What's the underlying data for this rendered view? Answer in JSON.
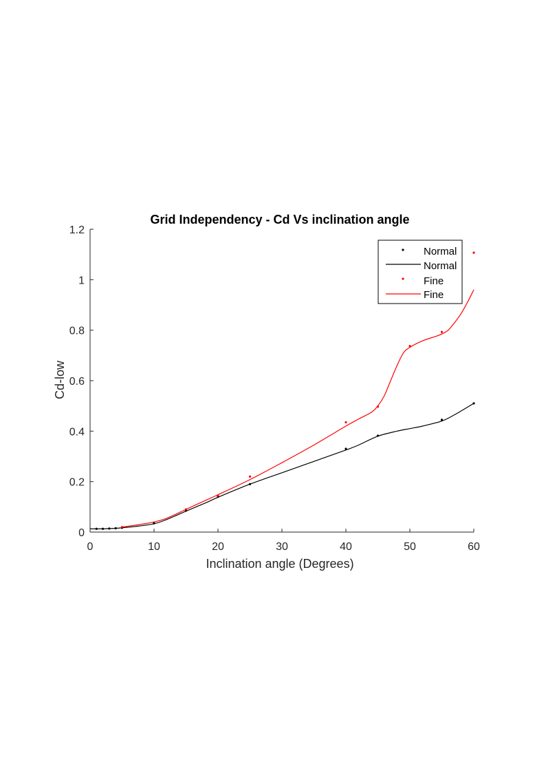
{
  "chart_data": {
    "type": "line",
    "title": "Grid Independency - Cd Vs  inclination angle",
    "xlabel": "Inclination angle (Degrees)",
    "ylabel": "Cd-low",
    "xlim": [
      0,
      60
    ],
    "ylim": [
      0,
      1.2
    ],
    "xticks": [
      0,
      10,
      20,
      30,
      40,
      50,
      60
    ],
    "yticks": [
      0,
      0.2,
      0.4,
      0.6,
      0.8,
      1,
      1.2
    ],
    "xtick_labels": [
      "0",
      "10",
      "20",
      "30",
      "40",
      "50",
      "60"
    ],
    "ytick_labels": [
      "0",
      "0.2",
      "0.4",
      "0.6",
      "0.8",
      "1",
      "1.2"
    ],
    "grid": false,
    "legend_position": "top-right",
    "legend": [
      "Normal",
      "Normal",
      "Fine",
      "Fine"
    ],
    "series": [
      {
        "name": "Normal",
        "color": "#000000",
        "points_x": [
          1,
          2,
          3,
          4,
          5,
          10,
          15,
          20,
          25,
          40,
          45,
          55,
          60
        ],
        "points_y": [
          0.013,
          0.013,
          0.014,
          0.015,
          0.017,
          0.035,
          0.085,
          0.14,
          0.19,
          0.33,
          0.382,
          0.445,
          0.51
        ],
        "curve_x": [
          0,
          1,
          2,
          3,
          4,
          5,
          7,
          10,
          12,
          15,
          18,
          20,
          25,
          30,
          35,
          40,
          42,
          45,
          48,
          50,
          52,
          55,
          57,
          60
        ],
        "curve_y": [
          0.013,
          0.013,
          0.013,
          0.014,
          0.015,
          0.017,
          0.022,
          0.033,
          0.05,
          0.083,
          0.115,
          0.138,
          0.19,
          0.235,
          0.28,
          0.325,
          0.345,
          0.38,
          0.4,
          0.41,
          0.42,
          0.44,
          0.465,
          0.51
        ]
      },
      {
        "name": "Fine",
        "color": "#ff0000",
        "points_x": [
          5,
          15,
          20,
          25,
          40,
          45,
          50,
          55,
          60
        ],
        "points_y": [
          0.02,
          0.09,
          0.145,
          0.22,
          0.435,
          0.497,
          0.737,
          0.793,
          1.107
        ],
        "curve_x": [
          5,
          7,
          10,
          12,
          15,
          18,
          20,
          25,
          30,
          35,
          40,
          42,
          44,
          45,
          46,
          47,
          48,
          49,
          50,
          52,
          54,
          55,
          56,
          57,
          58,
          59,
          60
        ],
        "curve_y": [
          0.02,
          0.027,
          0.04,
          0.055,
          0.09,
          0.125,
          0.148,
          0.208,
          0.275,
          0.345,
          0.42,
          0.448,
          0.475,
          0.5,
          0.54,
          0.6,
          0.66,
          0.71,
          0.732,
          0.758,
          0.775,
          0.785,
          0.8,
          0.83,
          0.865,
          0.91,
          0.96
        ]
      }
    ]
  }
}
